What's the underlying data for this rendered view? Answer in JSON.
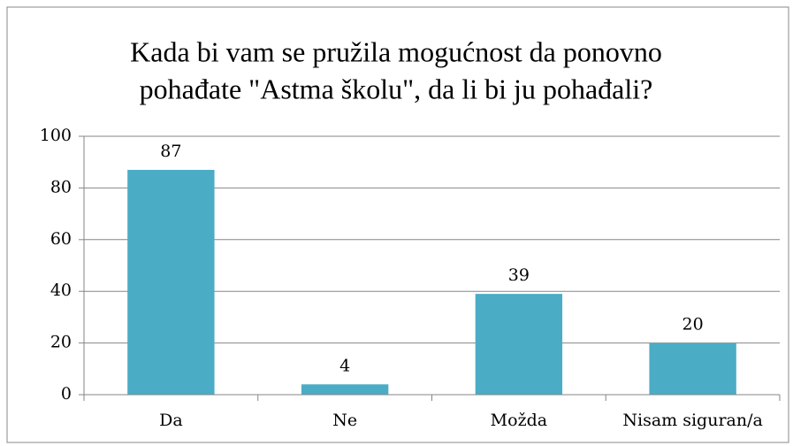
{
  "chart_data": {
    "type": "bar",
    "title": [
      "Kada bi vam se pružila mogućnost da ponovno",
      "pohađate \"Astma školu\", da li bi ju pohađali?"
    ],
    "categories": [
      "Da",
      "Ne",
      "Možda",
      "Nisam siguran/a"
    ],
    "values": [
      87,
      4,
      39,
      20
    ],
    "color": "#4bacc6",
    "ylim": [
      0,
      100
    ],
    "yticks": [
      0,
      20,
      40,
      60,
      80,
      100
    ],
    "grid": true
  }
}
